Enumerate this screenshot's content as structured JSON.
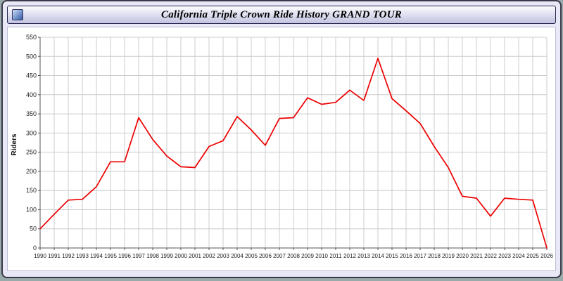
{
  "window": {
    "title": "California Triple Crown Ride History GRAND TOUR",
    "icon": "chart-window-icon"
  },
  "colors": {
    "page_background": "#e8e8f6",
    "plot_background": "#ffffff",
    "grid": "#cccccc",
    "axis": "#555555",
    "line": "#ee0000",
    "tick_text": "#222222"
  },
  "chart_data": {
    "type": "line",
    "title": "California Triple Crown Ride History GRAND TOUR",
    "xlabel": "",
    "ylabel": "Riders",
    "legend": "none",
    "grid": true,
    "ylim": [
      0,
      550
    ],
    "y_tick_step": 50,
    "x_ticks": [
      "1990",
      "1991",
      "1992",
      "1993",
      "1994",
      "1995",
      "1996",
      "1997",
      "1998",
      "1999",
      "2000",
      "2001",
      "2002",
      "2003",
      "2004",
      "2005",
      "2006",
      "2007",
      "2008",
      "2009",
      "2010",
      "2011",
      "2012",
      "2013",
      "2014",
      "2015",
      "2016",
      "2017",
      "2018",
      "2019",
      "2020",
      "2021",
      "2022",
      "2023",
      "2024",
      "2025",
      "2026"
    ],
    "x": [
      1990,
      1991,
      1992,
      1993,
      1994,
      1995,
      1996,
      1997,
      1998,
      1999,
      2000,
      2001,
      2002,
      2003,
      2004,
      2005,
      2006,
      2007,
      2008,
      2009,
      2010,
      2011,
      2012,
      2013,
      2014,
      2015,
      2016,
      2017,
      2018,
      2019,
      2020,
      2021,
      2022,
      2023,
      2024,
      2025,
      2026
    ],
    "series": [
      {
        "name": "Riders",
        "values": [
          50,
          88,
          125,
          127,
          160,
          225,
          225,
          340,
          283,
          240,
          212,
          210,
          265,
          280,
          343,
          308,
          268,
          338,
          340,
          392,
          375,
          380,
          412,
          385,
          495,
          390,
          358,
          325,
          265,
          210,
          135,
          130,
          83,
          130,
          127,
          125,
          0
        ]
      }
    ]
  }
}
